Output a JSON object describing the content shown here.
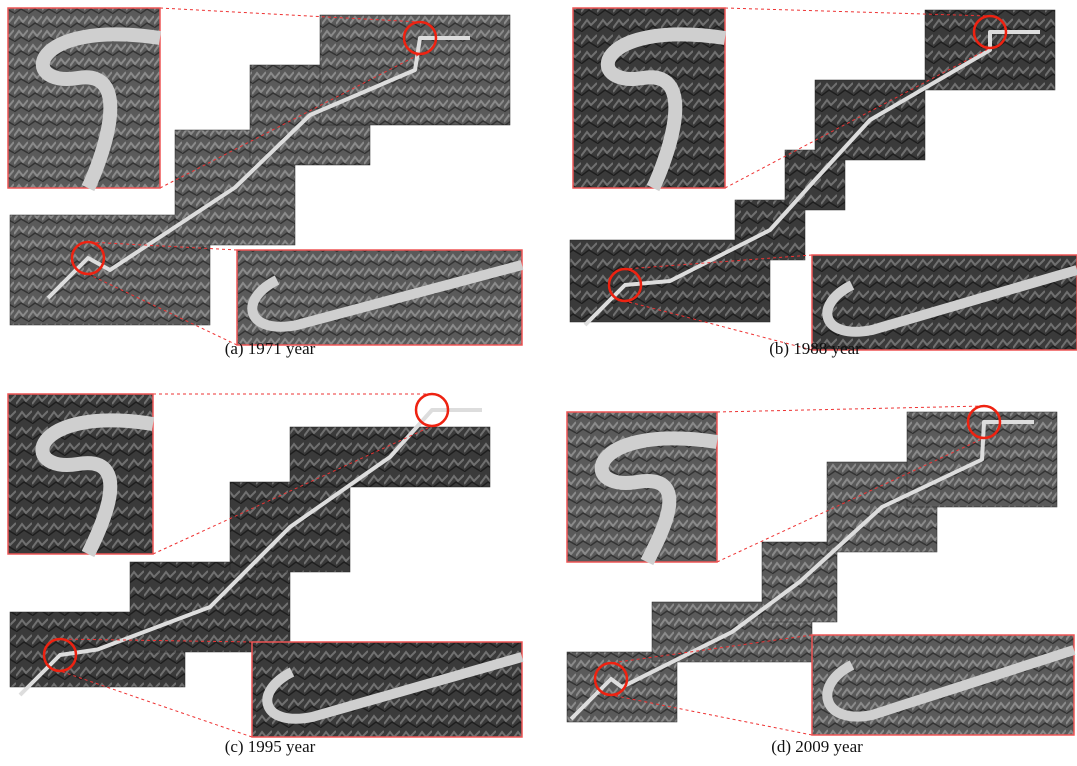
{
  "panels": [
    {
      "caption": "(a)  1971  year"
    },
    {
      "caption": "(b)  1988  year"
    },
    {
      "caption": "(c)  1995  year"
    },
    {
      "caption": "(d)  2009  year"
    }
  ]
}
